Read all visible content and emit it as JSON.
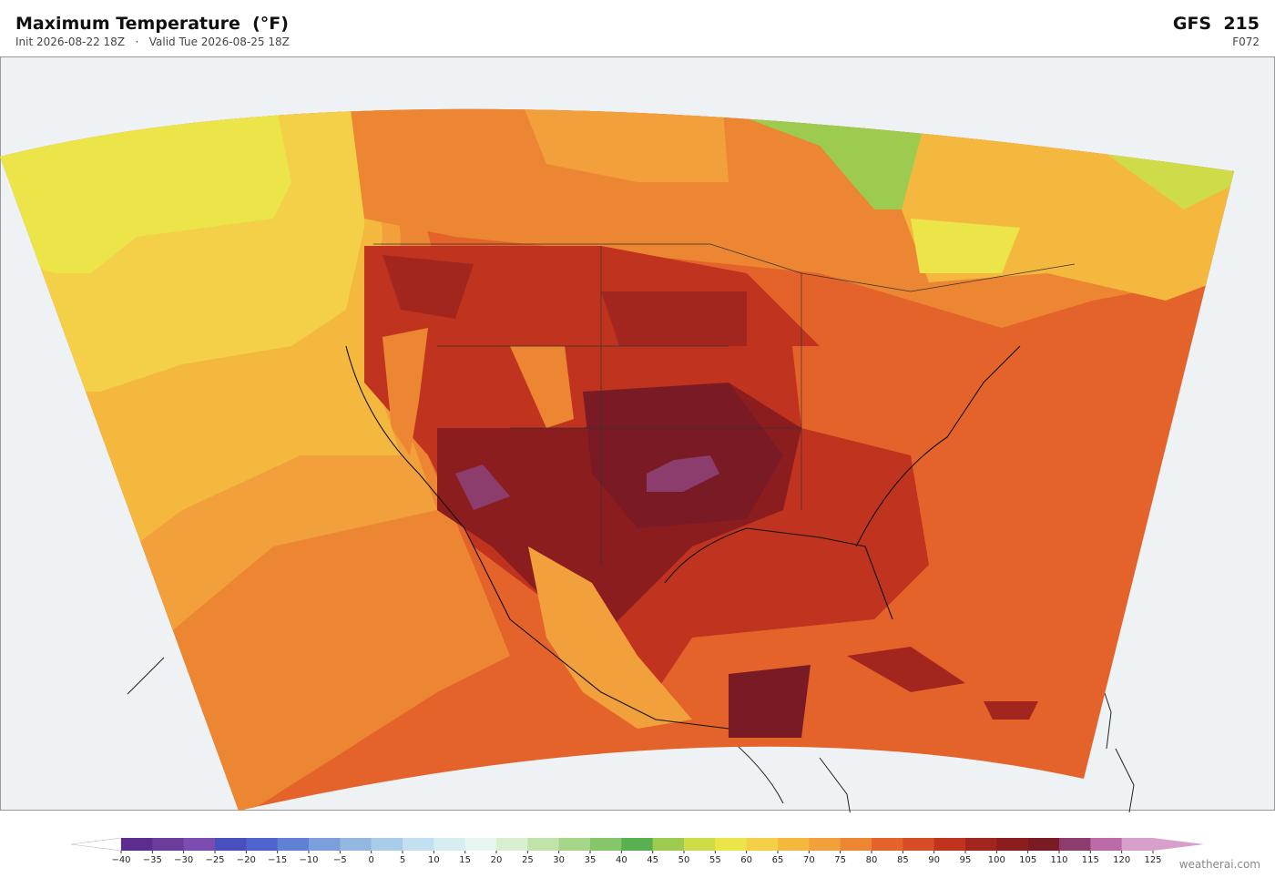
{
  "header": {
    "title": "Maximum Temperature  (°F)",
    "subtitle": "Init 2026-08-22 18Z   ·   Valid Tue 2026-08-25 18Z",
    "model": "GFS  215",
    "forecast_hour": "F072"
  },
  "colorbar": {
    "ticks": [
      {
        "value": -40,
        "label": "−40"
      },
      {
        "value": -35,
        "label": "−35"
      },
      {
        "value": -30,
        "label": "−30"
      },
      {
        "value": -25,
        "label": "−25"
      },
      {
        "value": -20,
        "label": "−20"
      },
      {
        "value": -15,
        "label": "−15"
      },
      {
        "value": -10,
        "label": "−10"
      },
      {
        "value": -5,
        "label": "−5"
      },
      0,
      5,
      10,
      15,
      20,
      25,
      30,
      35,
      40,
      45,
      50,
      55,
      60,
      65,
      70,
      75,
      80,
      85,
      90,
      95,
      100,
      105,
      110,
      115,
      120,
      125
    ],
    "colors": [
      "#5b2d8e",
      "#6a3d9a",
      "#7b4db0",
      "#4a4fbf",
      "#4f63cc",
      "#5f80d4",
      "#7a9fdc",
      "#92b8e0",
      "#a9cde8",
      "#c2e0ef",
      "#d6edf2",
      "#e6f5ee",
      "#d8efd0",
      "#bfe3a8",
      "#a5d687",
      "#86c66a",
      "#58b050",
      "#9ccb4f",
      "#cfdc4a",
      "#ece54a",
      "#f4cf48",
      "#f5b83f",
      "#f2a03b",
      "#ec8632",
      "#e4632a",
      "#d54c25",
      "#c0341f",
      "#a2261e",
      "#8c1d1f",
      "#7a1a24",
      "#8d3c6e",
      "#bd6aa8",
      "#d99fcc"
    ],
    "under_color": "#ffffff",
    "over_color": "#d99fcc"
  },
  "watermark": "weatherai.com"
}
